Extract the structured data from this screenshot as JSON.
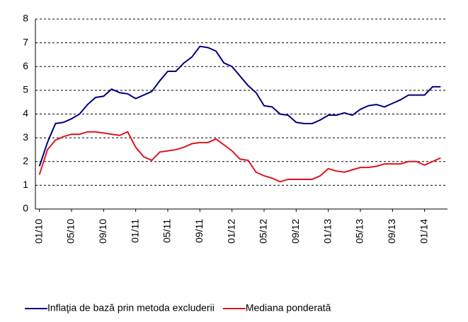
{
  "chart_data": {
    "type": "line",
    "categories": [
      "01/10",
      null,
      null,
      null,
      "05/10",
      null,
      null,
      null,
      "09/10",
      null,
      null,
      null,
      "01/11",
      null,
      null,
      null,
      "05/11",
      null,
      null,
      null,
      "09/11",
      null,
      null,
      null,
      "01/12",
      null,
      null,
      null,
      "05/12",
      null,
      null,
      null,
      "09/12",
      null,
      null,
      null,
      "01/13",
      null,
      null,
      null,
      "05/13",
      null,
      null,
      null,
      "09/13",
      null,
      null,
      null,
      "01/14",
      null,
      null
    ],
    "series": [
      {
        "name": "Inflaţia de bază prin metoda excluderii",
        "color": "#000080",
        "values": [
          1.8,
          2.8,
          3.6,
          3.65,
          3.8,
          4.0,
          4.4,
          4.7,
          4.75,
          5.05,
          4.9,
          4.85,
          4.65,
          4.8,
          4.95,
          5.4,
          5.8,
          5.8,
          6.15,
          6.4,
          6.85,
          6.8,
          6.65,
          6.15,
          6.0,
          5.6,
          5.2,
          4.9,
          4.35,
          4.3,
          4.0,
          3.95,
          3.65,
          3.6,
          3.6,
          3.75,
          3.95,
          3.95,
          4.05,
          3.95,
          4.2,
          4.35,
          4.4,
          4.3,
          4.45,
          4.6,
          4.8,
          4.8,
          4.8,
          5.15,
          5.15
        ]
      },
      {
        "name": "Mediana ponderată",
        "color": "#e0141e",
        "values": [
          1.45,
          2.5,
          2.9,
          3.05,
          3.15,
          3.15,
          3.25,
          3.25,
          3.2,
          3.15,
          3.1,
          3.25,
          2.6,
          2.2,
          2.05,
          2.4,
          2.45,
          2.5,
          2.6,
          2.75,
          2.8,
          2.8,
          2.95,
          2.7,
          2.45,
          2.1,
          2.05,
          1.55,
          1.4,
          1.3,
          1.15,
          1.25,
          1.25,
          1.25,
          1.25,
          1.4,
          1.7,
          1.6,
          1.55,
          1.65,
          1.75,
          1.75,
          1.8,
          1.9,
          1.9,
          1.9,
          2.0,
          2.0,
          1.85,
          2.0,
          2.15
        ]
      }
    ],
    "ylim": [
      0,
      8
    ],
    "yticks": [
      0,
      1,
      2,
      3,
      4,
      5,
      6,
      7,
      8
    ],
    "grid": true
  }
}
